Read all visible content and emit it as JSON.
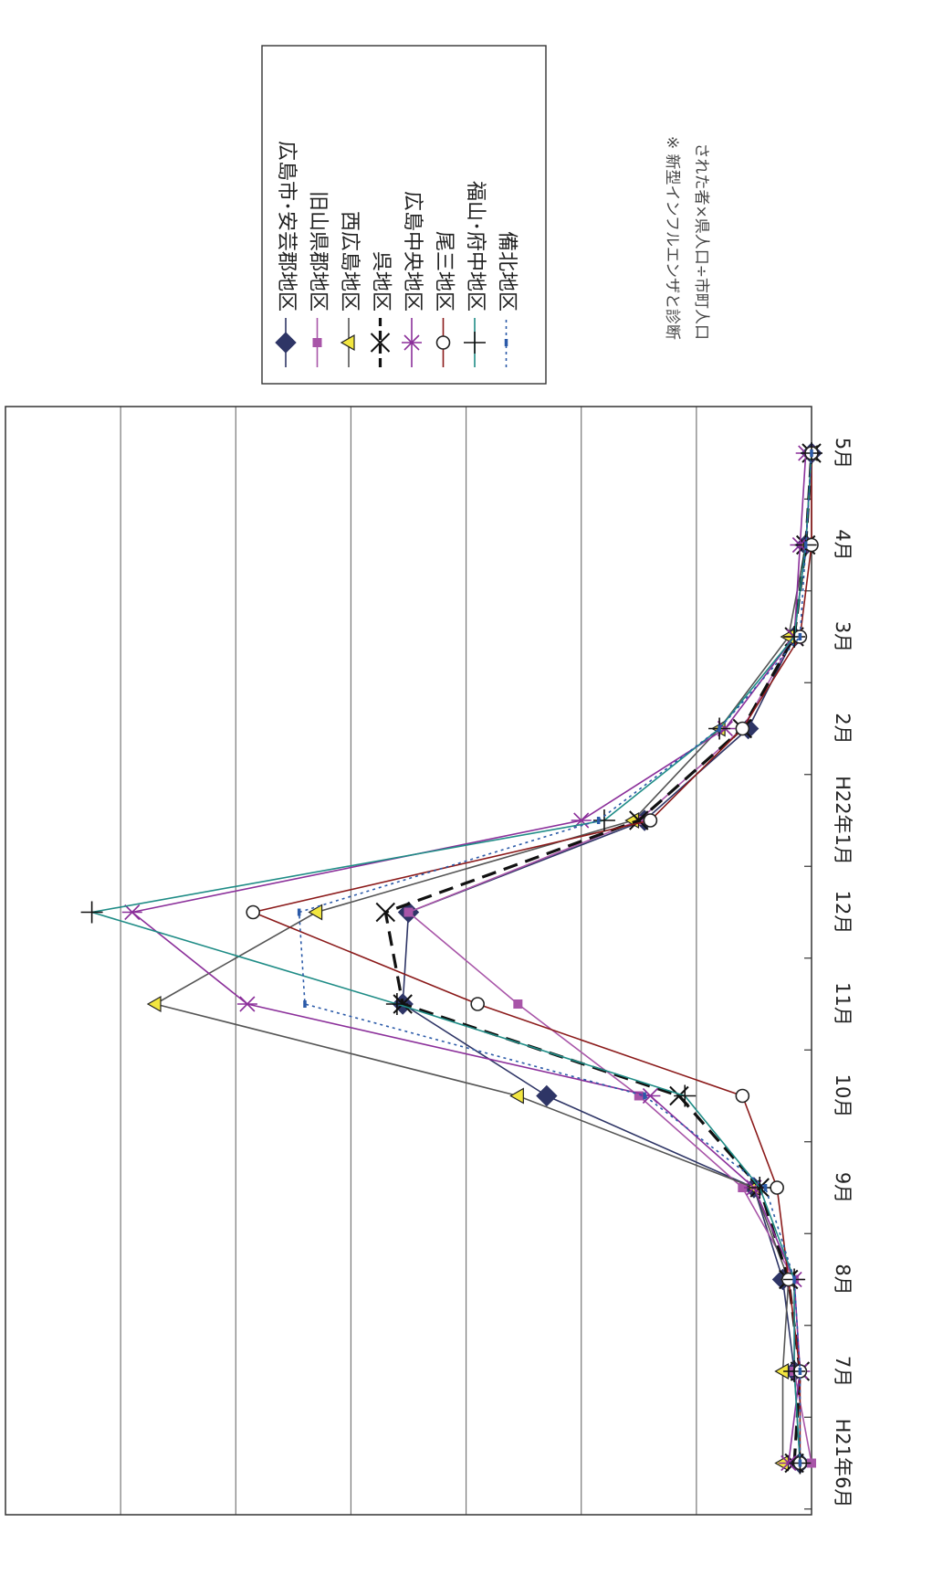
{
  "chart_data": {
    "type": "line",
    "categories": [
      "H21年6月",
      "7月",
      "8月",
      "9月",
      "10月",
      "11月",
      "12月",
      "H22年1月",
      "2月",
      "3月",
      "4月",
      "5月"
    ],
    "grid": true,
    "legend_position": "top-right",
    "yaxis_tick_labels": "none",
    "series": [
      {
        "name": "広島市･安芸郡地区",
        "color": "#2e3566",
        "marker": "diamond",
        "line": "solid",
        "values": [
          0.2,
          0.3,
          0.5,
          1.0,
          4.6,
          7.1,
          7.0,
          2.9,
          1.1,
          0.3,
          0.1,
          0.0
        ]
      },
      {
        "name": "旧山県郡地区",
        "color": "#a855a8",
        "marker": "square",
        "line": "solid",
        "values": [
          0.0,
          0.3,
          0.3,
          1.2,
          3.0,
          5.1,
          7.0,
          3.0,
          1.2,
          0.3,
          0.1,
          0.0
        ]
      },
      {
        "name": "西広島地区",
        "color": "#555555",
        "marker": "triangle",
        "line": "solid",
        "values": [
          0.5,
          0.5,
          0.4,
          1.0,
          5.1,
          11.4,
          8.6,
          3.1,
          1.6,
          0.4,
          0.1,
          0.0
        ]
      },
      {
        "name": "呉地区",
        "color": "#111111",
        "marker": "x",
        "line": "dashed",
        "values": [
          0.3,
          0.2,
          0.4,
          0.9,
          2.3,
          7.1,
          7.4,
          3.0,
          1.2,
          0.3,
          0.1,
          0.0
        ]
      },
      {
        "name": "広島中央地区",
        "color": "#8b2f9a",
        "marker": "asterisk",
        "line": "solid",
        "values": [
          0.4,
          0.2,
          0.3,
          1.0,
          2.8,
          9.8,
          11.8,
          4.0,
          1.5,
          0.3,
          0.2,
          0.1
        ]
      },
      {
        "name": "尾三地区",
        "color": "#8b1a1a",
        "marker": "circle",
        "line": "solid",
        "values": [
          0.2,
          0.2,
          0.4,
          0.6,
          1.2,
          5.8,
          9.7,
          2.8,
          1.2,
          0.2,
          0.0,
          0.0
        ]
      },
      {
        "name": "福山･府中地区",
        "color": "#1f8c86",
        "marker": "plus",
        "line": "solid",
        "values": [
          0.2,
          0.3,
          0.3,
          0.9,
          2.2,
          7.2,
          12.5,
          3.6,
          1.6,
          0.3,
          0.1,
          0.0
        ]
      },
      {
        "name": "備北地区",
        "color": "#2b5aa8",
        "marker": "dash",
        "line": "dotted",
        "values": [
          0.2,
          0.2,
          0.3,
          0.8,
          2.9,
          8.8,
          8.9,
          3.7,
          1.6,
          0.2,
          0.1,
          0.0
        ]
      }
    ],
    "note": "※ 新型インフルエンザと診断された者×県人口÷市町人口"
  }
}
